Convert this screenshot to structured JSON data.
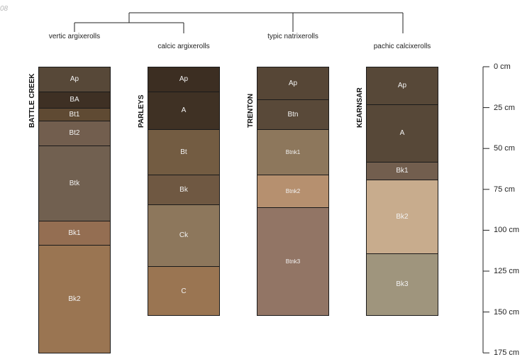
{
  "corner_label": "08",
  "taxa": [
    "vertic argixerolls",
    "calcic argixerolls",
    "typic natrixerolls",
    "pachic calcixerolls"
  ],
  "depth_axis": {
    "unit": "cm",
    "ticks": [
      0,
      25,
      50,
      75,
      100,
      125,
      150,
      175
    ],
    "tick_labels": [
      "0 cm",
      "25 cm",
      "50 cm",
      "75 cm",
      "100 cm",
      "125 cm",
      "150 cm",
      "175 cm"
    ]
  },
  "profiles": [
    {
      "name": "BATTLE CREEK",
      "horizons": [
        {
          "name": "Ap",
          "top": 0,
          "bottom": 15,
          "color": "#574838"
        },
        {
          "name": "BA",
          "top": 15,
          "bottom": 25,
          "color": "#3e3024"
        },
        {
          "name": "Bt1",
          "top": 25,
          "bottom": 33,
          "color": "#5f4a33"
        },
        {
          "name": "Bt2",
          "top": 33,
          "bottom": 48,
          "color": "#725e4e"
        },
        {
          "name": "Btk",
          "top": 48,
          "bottom": 94,
          "color": "#716050"
        },
        {
          "name": "Bk1",
          "top": 94,
          "bottom": 109,
          "color": "#946e52"
        },
        {
          "name": "Bk2",
          "top": 109,
          "bottom": 175,
          "color": "#9a7552"
        }
      ]
    },
    {
      "name": "PARLEYS",
      "horizons": [
        {
          "name": "Ap",
          "top": 0,
          "bottom": 15,
          "color": "#3c2e22"
        },
        {
          "name": "A",
          "top": 15,
          "bottom": 38,
          "color": "#3f3124"
        },
        {
          "name": "Bt",
          "top": 38,
          "bottom": 66,
          "color": "#735c42"
        },
        {
          "name": "Bk",
          "top": 66,
          "bottom": 84,
          "color": "#6f5842"
        },
        {
          "name": "Ck",
          "top": 84,
          "bottom": 122,
          "color": "#8d775c"
        },
        {
          "name": "C",
          "top": 122,
          "bottom": 152,
          "color": "#9a7552"
        }
      ]
    },
    {
      "name": "TRENTON",
      "horizons": [
        {
          "name": "Ap",
          "top": 0,
          "bottom": 20,
          "color": "#564636"
        },
        {
          "name": "Btn",
          "top": 20,
          "bottom": 38,
          "color": "#594939"
        },
        {
          "name": "Btnk1",
          "top": 38,
          "bottom": 66,
          "color": "#8d775c"
        },
        {
          "name": "Btnk2",
          "top": 66,
          "bottom": 86,
          "color": "#b6906f"
        },
        {
          "name": "Btnk3",
          "top": 86,
          "bottom": 152,
          "color": "#927565"
        }
      ]
    },
    {
      "name": "KEARNSAR",
      "horizons": [
        {
          "name": "Ap",
          "top": 0,
          "bottom": 23,
          "color": "#574838"
        },
        {
          "name": "A",
          "top": 23,
          "bottom": 58,
          "color": "#574838"
        },
        {
          "name": "Bk1",
          "top": 58,
          "bottom": 69,
          "color": "#725e4e"
        },
        {
          "name": "Bk2",
          "top": 69,
          "bottom": 114,
          "color": "#c8ac8d"
        },
        {
          "name": "Bk3",
          "top": 114,
          "bottom": 152,
          "color": "#9f957d"
        }
      ]
    }
  ]
}
